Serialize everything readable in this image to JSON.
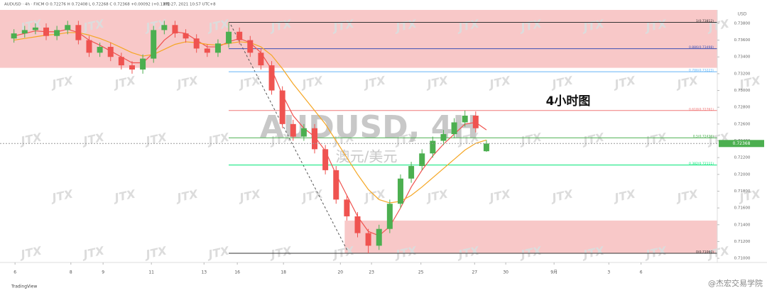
{
  "chart_data": {
    "type": "candlestick",
    "header": "AUDUSD · 4h · FXCM   O 0.72276  H 0.72408  L 0.72268  C 0.72368  +0.00092 (+0.13%)",
    "published": "8月 27, 2021 10:57 UTC+8",
    "title": "AUDUSD, 4H",
    "subtitle": "澳元/美元",
    "annotation": "4小时图",
    "currency": "USD",
    "footer": "TradingView",
    "watermark": "JTX",
    "credit": "@杰宏交易学院",
    "last_price": 0.72368,
    "xlim": [
      -1.3,
      65.5
    ],
    "xticks": [
      {
        "value": 0.1,
        "label": "6"
      },
      {
        "value": 5.3,
        "label": "8"
      },
      {
        "value": 8.3,
        "label": "9"
      },
      {
        "value": 12.8,
        "label": "11"
      },
      {
        "value": 17.7,
        "label": "13"
      },
      {
        "value": 20.8,
        "label": "16"
      },
      {
        "value": 25.1,
        "label": "18"
      },
      {
        "value": 30.4,
        "label": "20"
      },
      {
        "value": 33.3,
        "label": "23"
      },
      {
        "value": 37.9,
        "label": "25"
      },
      {
        "value": 42.9,
        "label": "27"
      },
      {
        "value": 45.8,
        "label": "30"
      },
      {
        "value": 50.3,
        "label": "9月"
      },
      {
        "value": 55.4,
        "label": "3"
      },
      {
        "value": 58.4,
        "label": "6"
      }
    ],
    "ylim": [
      0.7095,
      0.7396
    ],
    "yticks": [
      {
        "value": 0.71,
        "label": "0.71000"
      },
      {
        "value": 0.712,
        "label": "0.71200"
      },
      {
        "value": 0.714,
        "label": "0.71400"
      },
      {
        "value": 0.716,
        "label": "0.71600"
      },
      {
        "value": 0.718,
        "label": "0.71800"
      },
      {
        "value": 0.72,
        "label": "0.72000"
      },
      {
        "value": 0.722,
        "label": "0.72200"
      },
      {
        "value": 0.724,
        "label": "0.72400"
      },
      {
        "value": 0.726,
        "label": "0.72600"
      },
      {
        "value": 0.728,
        "label": "0.72800"
      },
      {
        "value": 0.73,
        "label": "0.73000"
      },
      {
        "value": 0.732,
        "label": "0.73200"
      },
      {
        "value": 0.734,
        "label": "0.73400"
      },
      {
        "value": 0.736,
        "label": "0.73600"
      },
      {
        "value": 0.738,
        "label": "0.73800"
      }
    ],
    "up_color": "#4caf50",
    "down_color": "#ef5350",
    "open": [
      0.7362,
      0.7368,
      0.7372,
      0.7375,
      0.7365,
      0.7372,
      0.7378,
      0.736,
      0.7345,
      0.7352,
      0.734,
      0.733,
      0.7325,
      0.7338,
      0.7372,
      0.7378,
      0.7368,
      0.7362,
      0.735,
      0.7345,
      0.7356,
      0.737,
      0.736,
      0.7345,
      0.733,
      0.73,
      0.726,
      0.7245,
      0.7255,
      0.723,
      0.7205,
      0.717,
      0.715,
      0.713,
      0.7115,
      0.7135,
      0.7165,
      0.7195,
      0.721,
      0.7225,
      0.724,
      0.7248,
      0.7262,
      0.727,
      0.72276
    ],
    "high": [
      0.7373,
      0.7377,
      0.738,
      0.738,
      0.7377,
      0.7383,
      0.7383,
      0.7365,
      0.7357,
      0.7357,
      0.7345,
      0.7335,
      0.7343,
      0.7377,
      0.7383,
      0.7383,
      0.7373,
      0.7367,
      0.7355,
      0.7361,
      0.7381,
      0.7375,
      0.7365,
      0.735,
      0.7335,
      0.7305,
      0.7265,
      0.726,
      0.726,
      0.7235,
      0.721,
      0.7175,
      0.7155,
      0.7135,
      0.714,
      0.717,
      0.72,
      0.7215,
      0.723,
      0.7245,
      0.7253,
      0.7267,
      0.7276,
      0.7275,
      0.72408
    ],
    "low": [
      0.7357,
      0.7363,
      0.7367,
      0.736,
      0.736,
      0.7367,
      0.7355,
      0.734,
      0.734,
      0.7335,
      0.7325,
      0.732,
      0.732,
      0.7333,
      0.7367,
      0.7363,
      0.7357,
      0.7345,
      0.734,
      0.734,
      0.7351,
      0.7355,
      0.734,
      0.7325,
      0.7295,
      0.7255,
      0.724,
      0.724,
      0.7225,
      0.72,
      0.7165,
      0.7145,
      0.7125,
      0.7106,
      0.711,
      0.713,
      0.716,
      0.719,
      0.7205,
      0.722,
      0.7235,
      0.7243,
      0.7257,
      0.725,
      0.72268
    ],
    "close": [
      0.7368,
      0.7372,
      0.7375,
      0.7365,
      0.7372,
      0.7378,
      0.736,
      0.7345,
      0.7352,
      0.734,
      0.733,
      0.7325,
      0.7338,
      0.7372,
      0.7378,
      0.7368,
      0.7362,
      0.735,
      0.7345,
      0.7356,
      0.737,
      0.736,
      0.7345,
      0.733,
      0.73,
      0.726,
      0.7245,
      0.7255,
      0.723,
      0.7205,
      0.717,
      0.715,
      0.713,
      0.7115,
      0.7135,
      0.7165,
      0.7195,
      0.721,
      0.7225,
      0.724,
      0.7248,
      0.7262,
      0.727,
      0.7255,
      0.72368
    ],
    "series": [
      {
        "color": "#f0534f",
        "values": [
          0.7365,
          0.7368,
          0.7371,
          0.737,
          0.737,
          0.7373,
          0.7369,
          0.736,
          0.7354,
          0.7347,
          0.734,
          0.7333,
          0.7333,
          0.7345,
          0.736,
          0.737,
          0.7368,
          0.736,
          0.7352,
          0.7352,
          0.7358,
          0.7362,
          0.7357,
          0.7345,
          0.7325,
          0.7295,
          0.727,
          0.7255,
          0.7245,
          0.7228,
          0.72,
          0.7175,
          0.715,
          0.7132,
          0.7127,
          0.7138,
          0.716,
          0.7185,
          0.7205,
          0.7222,
          0.7236,
          0.7248,
          0.726,
          0.7262,
          0.7253
        ]
      },
      {
        "color": "#f5a623",
        "values": [
          0.736,
          0.7362,
          0.7364,
          0.7366,
          0.7367,
          0.7369,
          0.7369,
          0.7366,
          0.7362,
          0.7357,
          0.7351,
          0.7345,
          0.7341,
          0.7343,
          0.7349,
          0.7355,
          0.7358,
          0.7357,
          0.7355,
          0.7354,
          0.7356,
          0.7358,
          0.7357,
          0.7352,
          0.7342,
          0.7326,
          0.7308,
          0.7292,
          0.7276,
          0.726,
          0.724,
          0.722,
          0.72,
          0.7182,
          0.717,
          0.7166,
          0.7168,
          0.7175,
          0.7185,
          0.7196,
          0.7207,
          0.7218,
          0.7229,
          0.7237,
          0.7241
        ]
      }
    ],
    "fib_levels": [
      {
        "label": "1(0.73812)",
        "value": 0.73812,
        "color": "#333333"
      },
      {
        "label": "0.886(0.73498)",
        "value": 0.73498,
        "color": "#3f51b5"
      },
      {
        "label": "0.786(0.73223)",
        "value": 0.73223,
        "color": "#64b5f6"
      },
      {
        "label": "0.618(0.72761)",
        "value": 0.72761,
        "color": "#f07878"
      },
      {
        "label": "0.5(0.72436)",
        "value": 0.72436,
        "color": "#4caf50"
      },
      {
        "label": "0.382(0.72111)",
        "value": 0.72111,
        "color": "#00e676"
      },
      {
        "label": "0(0.71060)",
        "value": 0.7106,
        "color": "#333333"
      }
    ],
    "zones": [
      {
        "xlim": [
          -1.3,
          65.5
        ],
        "ylim": [
          0.7327,
          0.7396
        ],
        "color": "#f8c8c8"
      },
      {
        "xlim": [
          30.8,
          65.5
        ],
        "ylim": [
          0.7106,
          0.7145
        ],
        "color": "#f8c8c8"
      }
    ]
  }
}
